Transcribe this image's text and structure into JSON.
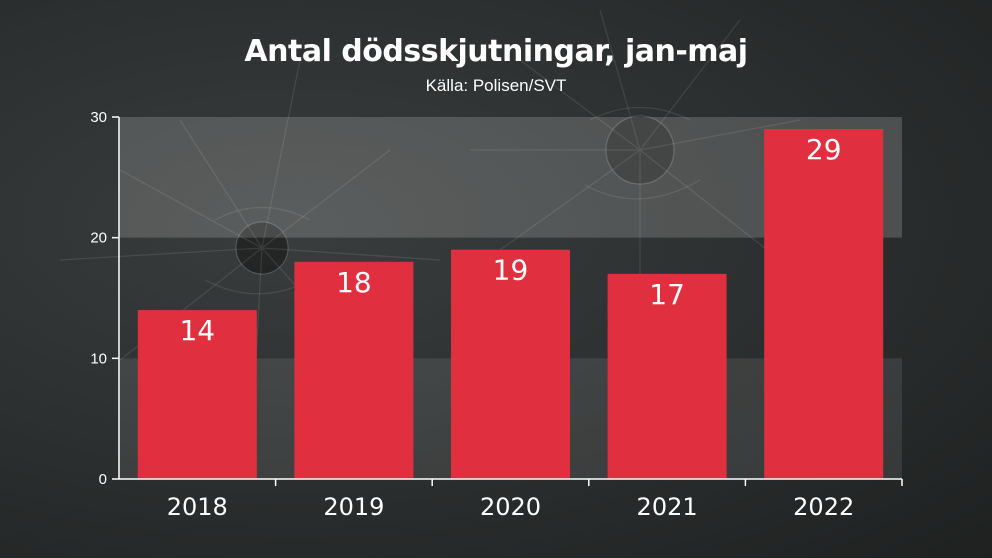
{
  "chart_data": {
    "type": "bar",
    "title": "Antal dödsskjutningar, jan-maj",
    "subtitle": "Källa: Polisen/SVT",
    "categories": [
      "2018",
      "2019",
      "2020",
      "2021",
      "2022"
    ],
    "values": [
      14,
      18,
      19,
      17,
      29
    ],
    "data_labels": [
      "14",
      "18",
      "19",
      "17",
      "29"
    ],
    "yticks": [
      "0",
      "10",
      "20",
      "30"
    ],
    "ylim": [
      0,
      30
    ],
    "xlabel": "",
    "ylabel": "",
    "grid": "alternating bands",
    "legend": "none",
    "colors": {
      "bar": "#e03040",
      "text": "#ffffff",
      "axis": "#ffffff",
      "band": "rgba(255,255,255,0.09)"
    }
  }
}
